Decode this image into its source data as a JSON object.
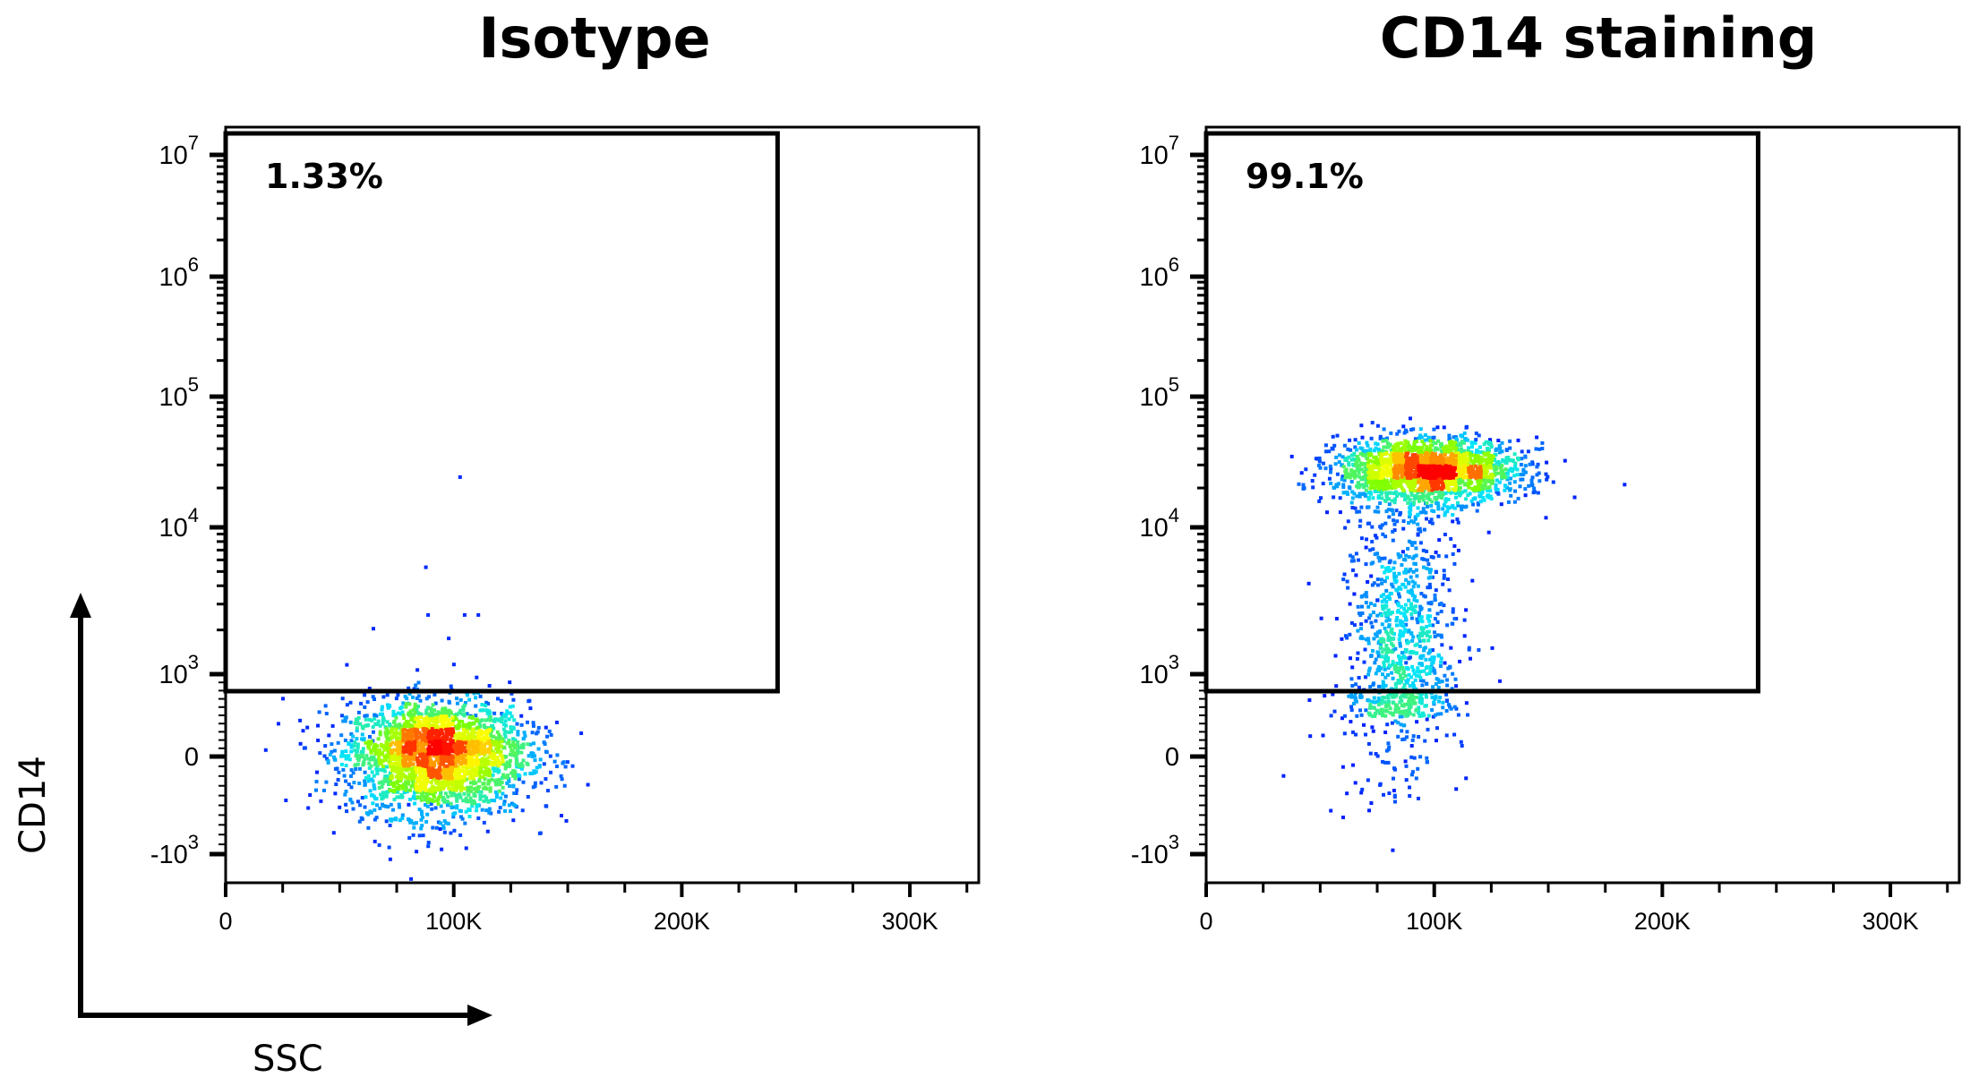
{
  "chart_data": [
    {
      "type": "scatter",
      "title": "Isotype",
      "xlabel": "SSC",
      "ylabel": "CD14",
      "x_scale": "linear",
      "y_scale": "biexponential",
      "xlim": [
        0,
        330000
      ],
      "x_ticks": [
        {
          "value": 0,
          "label": "0"
        },
        {
          "value": 100000,
          "label": "100K"
        },
        {
          "value": 200000,
          "label": "200K"
        },
        {
          "value": 300000,
          "label": "300K"
        }
      ],
      "y_ticks": [
        {
          "value": -1000,
          "base": "-10",
          "exp": "3"
        },
        {
          "value": 0,
          "base": "0",
          "exp": ""
        },
        {
          "value": 1000,
          "base": "10",
          "exp": "3"
        },
        {
          "value": 10000,
          "base": "10",
          "exp": "4"
        },
        {
          "value": 100000,
          "base": "10",
          "exp": "5"
        },
        {
          "value": 1000000,
          "base": "10",
          "exp": "6"
        },
        {
          "value": 10000000,
          "base": "10",
          "exp": "7"
        }
      ],
      "gate": {
        "x_min": 0,
        "x_max": 242000,
        "y_min": 700,
        "y_max": 14000000,
        "label": "1.33%"
      },
      "populations": [
        {
          "ssc_mean": 92000,
          "ssc_sd": 20000,
          "cd14_mean": 50,
          "cd14_sd": 320,
          "count": 2600
        }
      ],
      "outliers": [
        [
          102000,
          25000
        ],
        [
          87000,
          5500
        ],
        [
          88000,
          2600
        ],
        [
          104000,
          2600
        ],
        [
          110000,
          2600
        ],
        [
          64000,
          2100
        ],
        [
          97000,
          1800
        ]
      ],
      "color_scale": [
        "#0000ff",
        "#00e5ff",
        "#7fff00",
        "#ffff00",
        "#ff0000"
      ]
    },
    {
      "type": "scatter",
      "title": "CD14 staining",
      "xlabel": "SSC",
      "ylabel": "CD14",
      "x_scale": "linear",
      "y_scale": "biexponential",
      "xlim": [
        0,
        330000
      ],
      "x_ticks": [
        {
          "value": 0,
          "label": "0"
        },
        {
          "value": 100000,
          "label": "100K"
        },
        {
          "value": 200000,
          "label": "200K"
        },
        {
          "value": 300000,
          "label": "300K"
        }
      ],
      "y_ticks": [
        {
          "value": -1000,
          "base": "-10",
          "exp": "3"
        },
        {
          "value": 0,
          "base": "0",
          "exp": ""
        },
        {
          "value": 1000,
          "base": "10",
          "exp": "3"
        },
        {
          "value": 10000,
          "base": "10",
          "exp": "4"
        },
        {
          "value": 100000,
          "base": "10",
          "exp": "5"
        },
        {
          "value": 1000000,
          "base": "10",
          "exp": "6"
        },
        {
          "value": 10000000,
          "base": "10",
          "exp": "7"
        }
      ],
      "gate": {
        "x_min": 0,
        "x_max": 242000,
        "y_min": 700,
        "y_max": 14000000,
        "label": "99.1%"
      },
      "populations": [
        {
          "ssc_mean": 97000,
          "ssc_sd": 20000,
          "cd14_log10_mean": 4.45,
          "cd14_log10_sd": 0.12,
          "count": 2000
        },
        {
          "ssc_mean": 85000,
          "ssc_sd": 15000,
          "cd14_log10_min": 2.7,
          "cd14_log10_max": 4.3,
          "count": 900
        },
        {
          "ssc_mean": 80000,
          "ssc_sd": 15000,
          "cd14_mean": 200,
          "cd14_sd": 400,
          "count": 120
        }
      ],
      "color_scale": [
        "#0000ff",
        "#00e5ff",
        "#7fff00",
        "#ffff00",
        "#ff0000"
      ]
    }
  ],
  "axis_arrows": {
    "x_label": "SSC",
    "y_label": "CD14"
  }
}
